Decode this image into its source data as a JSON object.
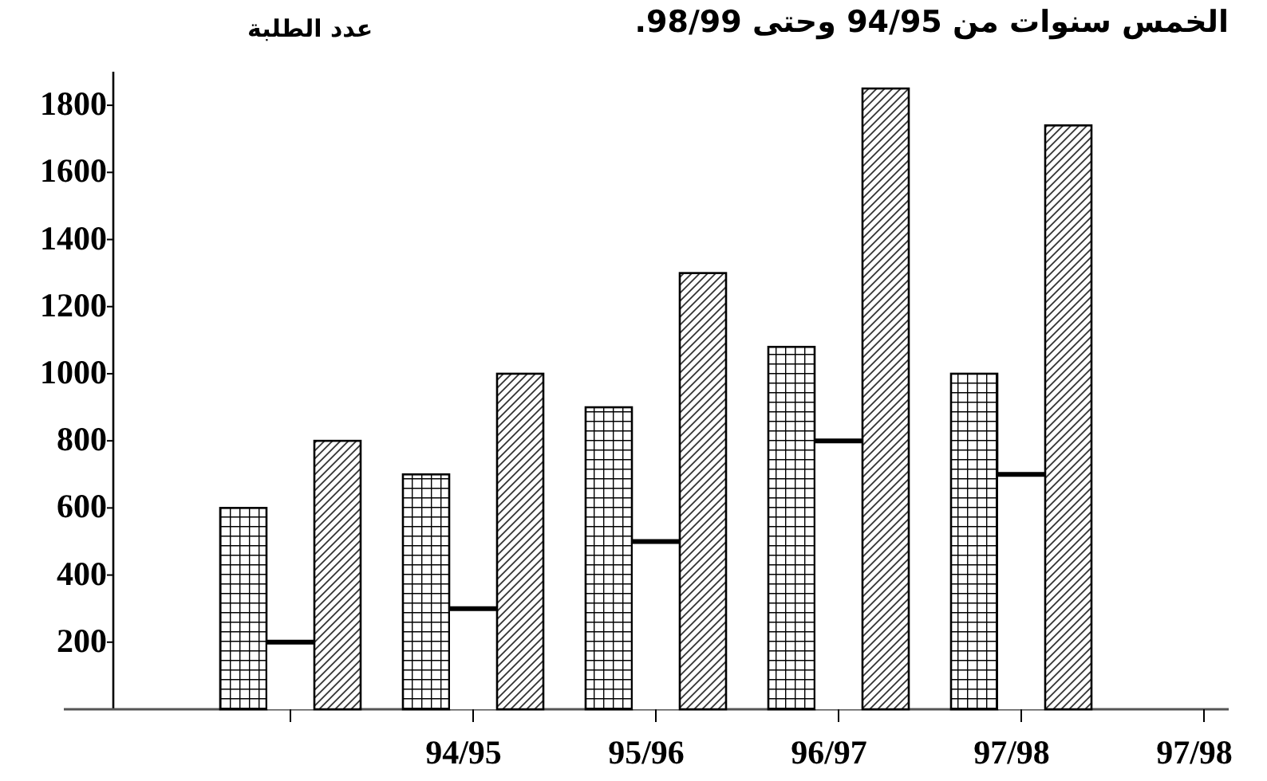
{
  "chart_data": {
    "type": "bar",
    "title": "الخمس سنوات من 94/95 وحتى 98/99.",
    "ylabel": "عدد الطلبة",
    "categories": [
      null,
      "94/95",
      "95/96",
      "96/97",
      "97/98",
      "97/98"
    ],
    "series": [
      {
        "color": "#000000",
        "values": [
          600,
          700,
          900,
          1080,
          1000,
          null
        ]
      },
      {
        "type": "bar",
        "color": "#000000",
        "values": [
          200,
          300,
          500,
          800,
          700,
          null
        ]
      },
      {
        "color": "#000000",
        "values": [
          800,
          1000,
          1300,
          1850,
          1740,
          null
        ]
      }
    ],
    "ylim": [
      0,
      1900
    ],
    "yticks": [
      200,
      400,
      600,
      800,
      1000,
      1200,
      1400,
      1600,
      1800
    ]
  }
}
